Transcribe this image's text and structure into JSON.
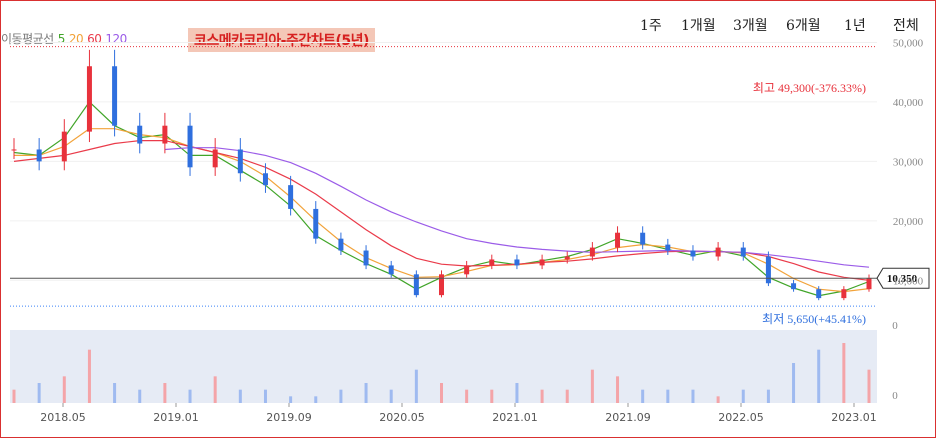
{
  "title": "코스메카코리아-주간차트(5년)",
  "ma_legend": {
    "label": "이동평균선",
    "items": [
      {
        "period": "5",
        "color": "#41a529"
      },
      {
        "period": "20",
        "color": "#f2a33a"
      },
      {
        "period": "60",
        "color": "#ea3b4a"
      },
      {
        "period": "120",
        "color": "#9b5ce8"
      }
    ]
  },
  "period_buttons": [
    "1주",
    "1개월",
    "3개월",
    "6개월",
    "1년",
    "전체"
  ],
  "colors": {
    "up": "#e8323c",
    "down": "#2f6fde",
    "border": "#d93030",
    "volume_bg": "#e6ebf5",
    "high_line": "#e8323c",
    "low_line": "#3b82f6"
  },
  "high_label": "최고 49,300(-376.33%)",
  "low_label": "최저 5,650(+45.41%)",
  "current_price": "10,350",
  "chart_data": {
    "type": "candlestick",
    "title": "코스메카코리아-주간차트(5년)",
    "x_tick_labels": [
      "2018.05",
      "2019.01",
      "2019.09",
      "2020.05",
      "2021.01",
      "2021.09",
      "2022.05",
      "2023.01"
    ],
    "y_tick_labels": [
      "50,000",
      "40,000",
      "30,000",
      "20,000",
      "10,000"
    ],
    "volume_axis_labels": [
      "0",
      "0"
    ],
    "ylim": [
      5000,
      51000
    ],
    "high": 49300,
    "low": 5650,
    "current": 10350,
    "price_series": {
      "name": "price",
      "x": [
        "2018.01",
        "2018.03",
        "2018.04",
        "2018.05",
        "2018.06",
        "2018.08",
        "2018.10",
        "2018.11",
        "2019.01",
        "2019.03",
        "2019.05",
        "2019.07",
        "2019.09",
        "2019.11",
        "2020.01",
        "2020.03",
        "2020.04",
        "2020.06",
        "2020.08",
        "2020.10",
        "2020.12",
        "2021.02",
        "2021.04",
        "2021.06",
        "2021.07",
        "2021.09",
        "2021.11",
        "2022.01",
        "2022.03",
        "2022.05",
        "2022.07",
        "2022.09",
        "2022.11",
        "2023.01",
        "2023.02"
      ],
      "values": [
        32000,
        30000,
        35000,
        46000,
        36000,
        33000,
        36000,
        29000,
        32000,
        28000,
        26000,
        22000,
        17000,
        15000,
        12500,
        11000,
        7500,
        11000,
        12500,
        13500,
        12500,
        13500,
        14000,
        15500,
        18000,
        16000,
        15000,
        14000,
        15500,
        14000,
        9500,
        8500,
        7000,
        8500,
        10350
      ]
    },
    "ma_series": [
      {
        "name": "5",
        "values": [
          31500,
          31000,
          34000,
          40000,
          36000,
          34000,
          34500,
          31000,
          31000,
          28500,
          26000,
          22500,
          17500,
          15000,
          12800,
          11000,
          8500,
          10500,
          12200,
          13200,
          12600,
          13300,
          14000,
          15200,
          17000,
          16200,
          15200,
          14200,
          15000,
          14100,
          10500,
          8700,
          7400,
          8200,
          9800
        ]
      },
      {
        "name": "20",
        "values": [
          31000,
          31000,
          32500,
          35500,
          35500,
          34500,
          34000,
          32500,
          31500,
          30000,
          27500,
          24000,
          20000,
          16500,
          13800,
          12000,
          10500,
          10600,
          11500,
          12500,
          12600,
          13000,
          13500,
          14300,
          15500,
          16000,
          15600,
          14800,
          14800,
          14600,
          12700,
          10300,
          8500,
          8100,
          8600
        ]
      },
      {
        "name": "60",
        "values": [
          30000,
          30500,
          31000,
          32000,
          33000,
          33500,
          33500,
          32500,
          31500,
          30500,
          29000,
          27000,
          24500,
          21500,
          18500,
          15800,
          13700,
          12700,
          12400,
          12500,
          12700,
          13000,
          13200,
          13600,
          14100,
          14500,
          14800,
          14900,
          14800,
          14700,
          14000,
          12800,
          11400,
          10500,
          10000
        ]
      },
      {
        "name": "120",
        "values": [
          null,
          null,
          null,
          null,
          null,
          null,
          32000,
          32300,
          32300,
          31800,
          31000,
          29800,
          28000,
          25800,
          23500,
          21500,
          19800,
          18300,
          17000,
          16200,
          15600,
          15200,
          14900,
          14700,
          14800,
          14900,
          15000,
          14900,
          14800,
          14700,
          14300,
          13800,
          13200,
          12600,
          12200
        ]
      }
    ],
    "volume_series": {
      "name": "volume",
      "values": [
        2,
        3,
        4,
        8,
        3,
        2,
        3,
        2,
        4,
        2,
        2,
        1,
        1,
        2,
        3,
        2,
        5,
        3,
        2,
        2,
        3,
        2,
        2,
        5,
        4,
        2,
        2,
        2,
        1,
        2,
        2,
        6,
        8,
        9,
        5
      ]
    }
  }
}
